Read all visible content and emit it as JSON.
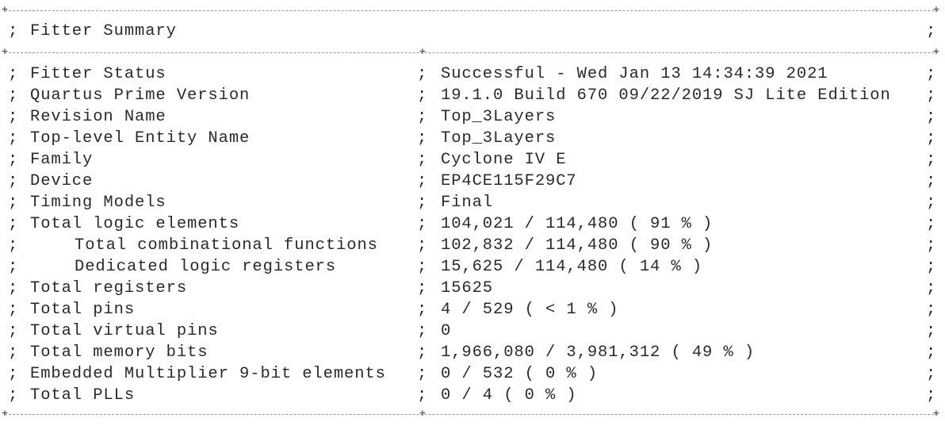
{
  "separator": {
    "corner_glyph": "+",
    "column_glyph": ";"
  },
  "header": {
    "title": "Fitter Summary"
  },
  "rows": [
    {
      "label": "Fitter Status",
      "value": "Successful - Wed Jan 13 14:34:39 2021",
      "indented": false
    },
    {
      "label": "Quartus Prime Version",
      "value": "19.1.0 Build 670 09/22/2019 SJ Lite Edition",
      "indented": false
    },
    {
      "label": "Revision Name",
      "value": "Top_3Layers",
      "indented": false
    },
    {
      "label": "Top-level Entity Name",
      "value": "Top_3Layers",
      "indented": false
    },
    {
      "label": "Family",
      "value": "Cyclone IV E",
      "indented": false
    },
    {
      "label": "Device",
      "value": "EP4CE115F29C7",
      "indented": false
    },
    {
      "label": "Timing Models",
      "value": "Final",
      "indented": false
    },
    {
      "label": "Total logic elements",
      "value": "104,021 / 114,480 ( 91 % )",
      "indented": false
    },
    {
      "label": "Total combinational functions",
      "value": "102,832 / 114,480 ( 90 % )",
      "indented": true
    },
    {
      "label": "Dedicated logic registers",
      "value": "15,625 / 114,480 ( 14 % )",
      "indented": true
    },
    {
      "label": "Total registers",
      "value": "15625",
      "indented": false
    },
    {
      "label": "Total pins",
      "value": "4 / 529 ( < 1 % )",
      "indented": false
    },
    {
      "label": "Total virtual pins",
      "value": "0",
      "indented": false
    },
    {
      "label": "Total memory bits",
      "value": "1,966,080 / 3,981,312 ( 49 % )",
      "indented": false
    },
    {
      "label": "Embedded Multiplier 9-bit elements",
      "value": "0 / 532 ( 0 % )",
      "indented": false
    },
    {
      "label": "Total PLLs",
      "value": "0 / 4 ( 0 % )",
      "indented": false
    }
  ]
}
